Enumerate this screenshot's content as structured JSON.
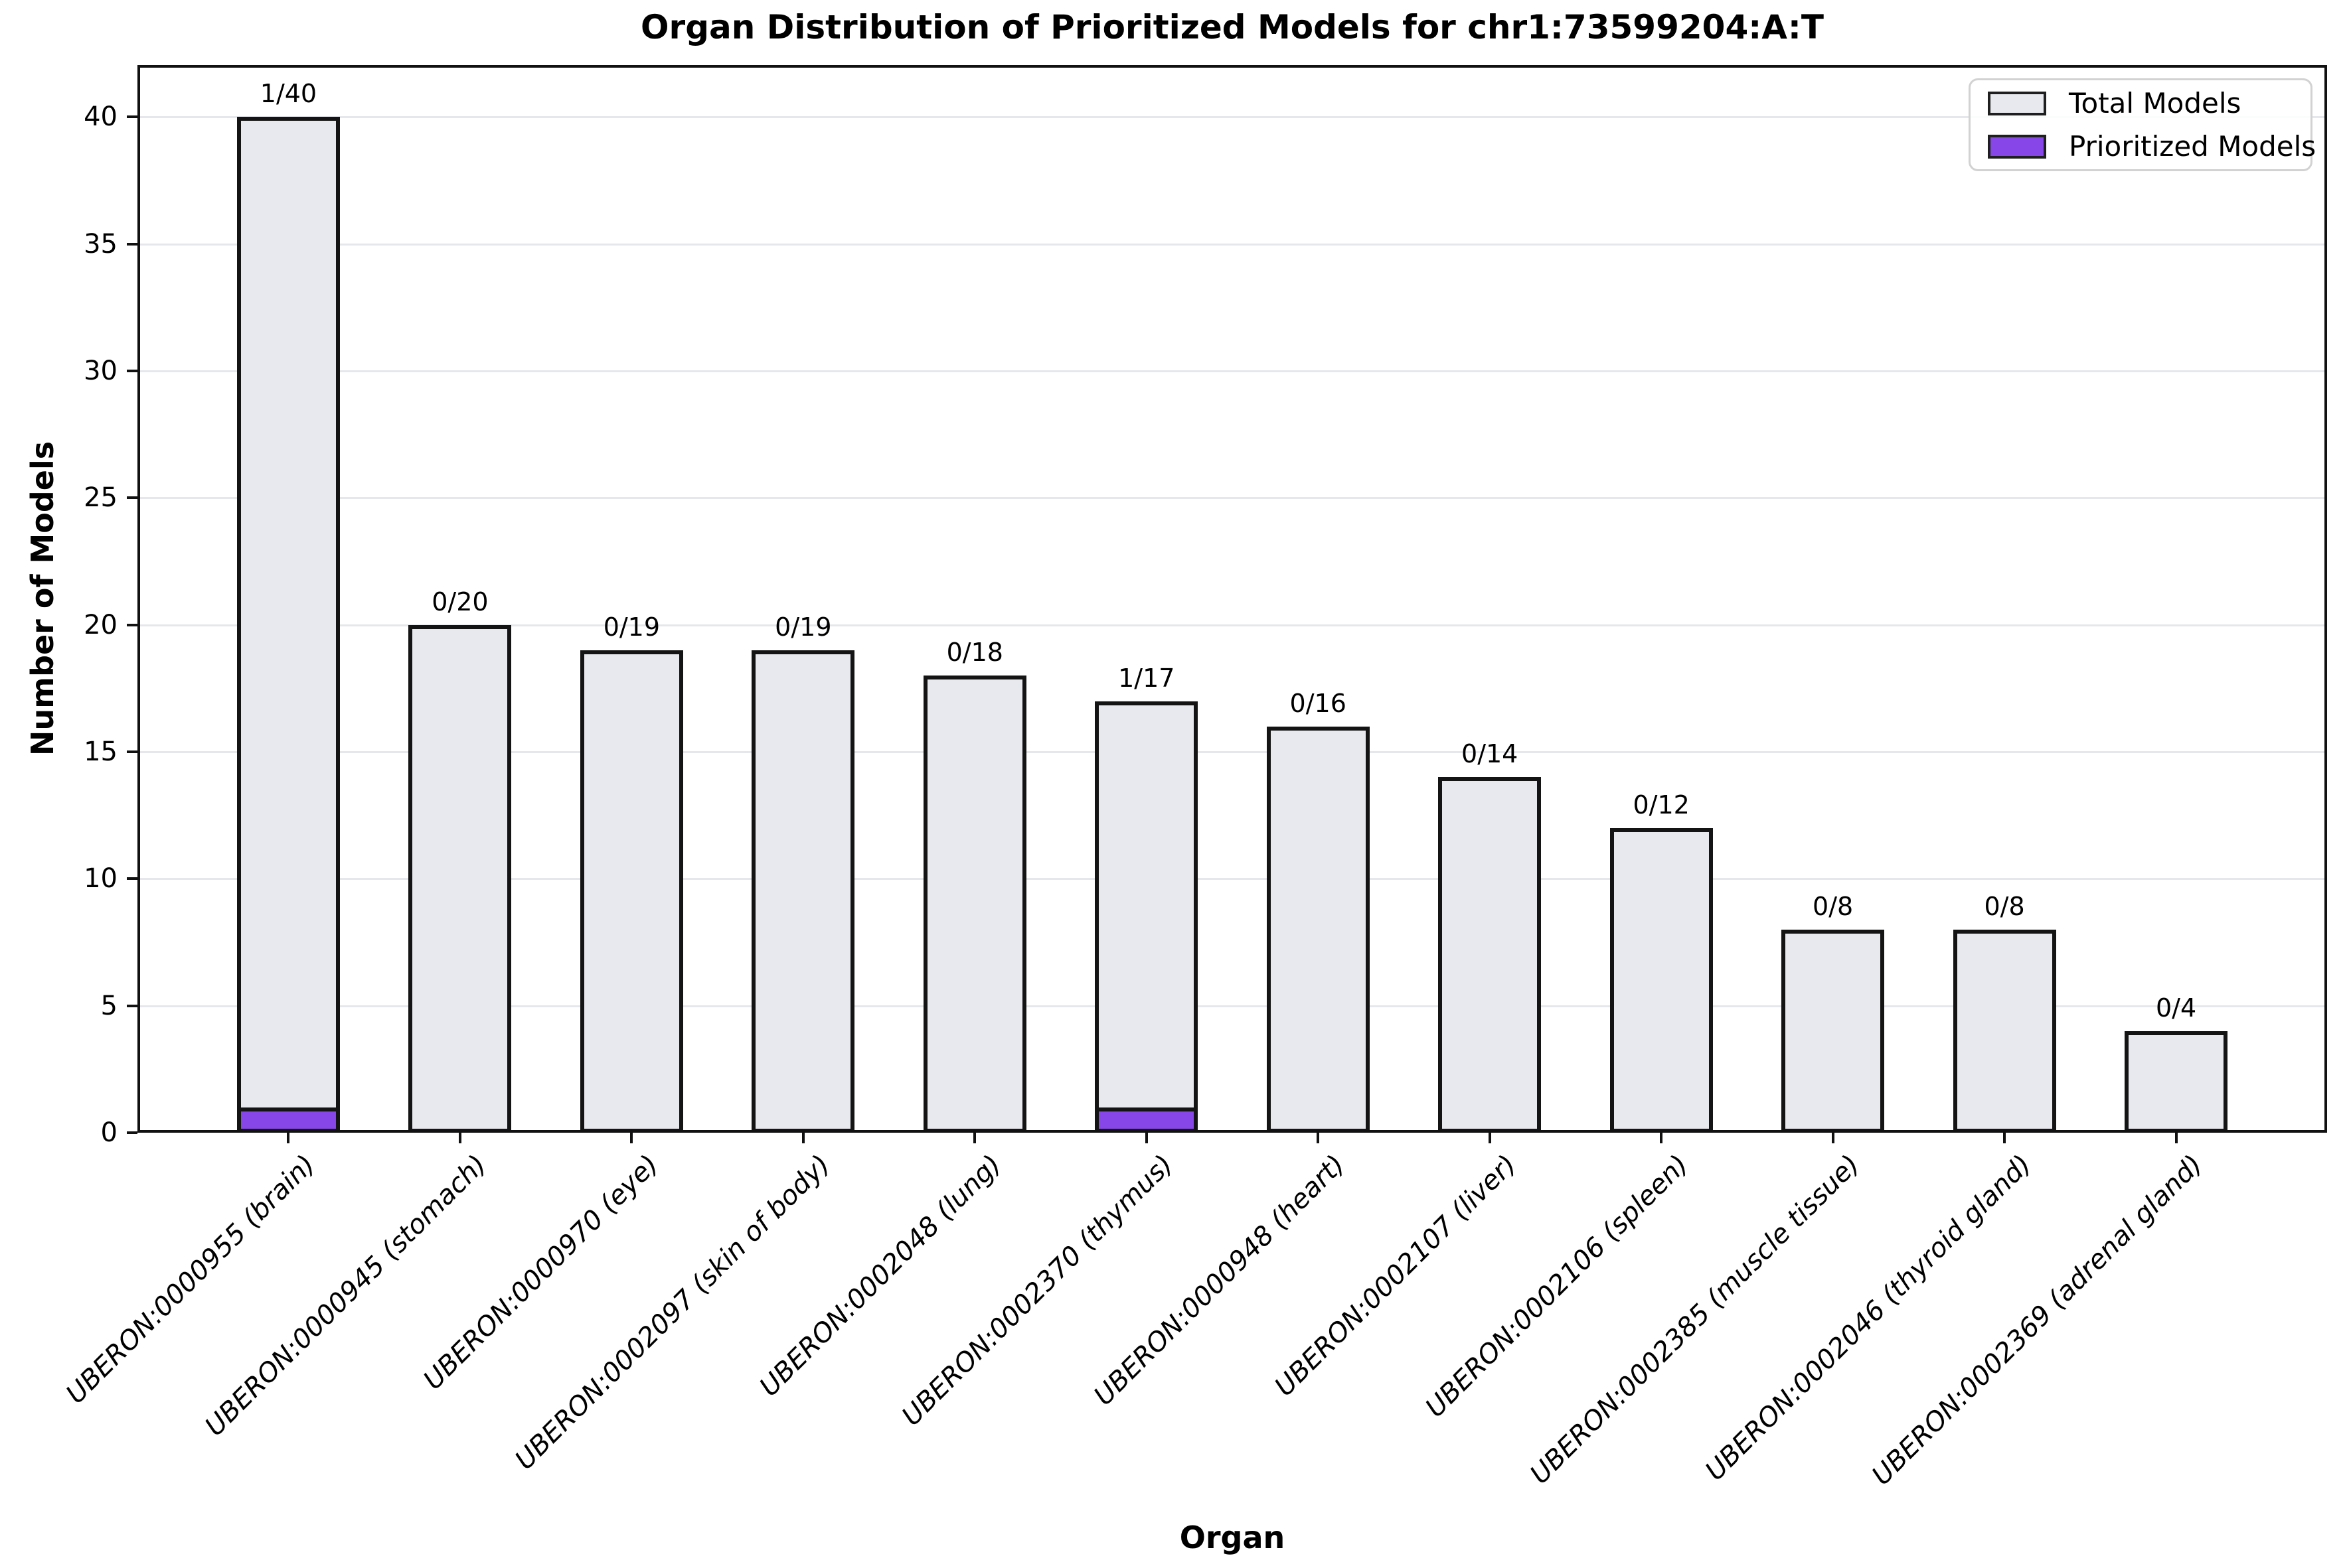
{
  "chart_data": {
    "type": "bar",
    "title": "Organ Distribution of Prioritized Models for chr1:73599204:A:T",
    "xlabel": "Organ",
    "ylabel": "Number of Models",
    "categories": [
      "UBERON:0000955 (brain)",
      "UBERON:0000945 (stomach)",
      "UBERON:0000970 (eye)",
      "UBERON:0002097 (skin of body)",
      "UBERON:0002048 (lung)",
      "UBERON:0002370 (thymus)",
      "UBERON:0000948 (heart)",
      "UBERON:0002107 (liver)",
      "UBERON:0002106 (spleen)",
      "UBERON:0002385 (muscle tissue)",
      "UBERON:0002046 (thyroid gland)",
      "UBERON:0002369 (adrenal gland)"
    ],
    "series": [
      {
        "name": "Total Models",
        "color": "#e8e9ee",
        "edge_color": "#141414",
        "values": [
          40,
          20,
          19,
          19,
          18,
          17,
          16,
          14,
          12,
          8,
          8,
          4
        ]
      },
      {
        "name": "Prioritized Models",
        "color": "#8747e8",
        "edge_color": "#141414",
        "values": [
          1,
          0,
          0,
          0,
          0,
          1,
          0,
          0,
          0,
          0,
          0,
          0
        ]
      }
    ],
    "bar_annotations": [
      "1/40",
      "0/20",
      "0/19",
      "0/19",
      "0/18",
      "1/17",
      "0/16",
      "0/14",
      "0/12",
      "0/8",
      "0/8",
      "0/4"
    ],
    "yticks": [
      0,
      5,
      10,
      15,
      20,
      25,
      30,
      35,
      40
    ],
    "ylim": [
      0,
      42
    ],
    "grid": "horizontal",
    "grid_color": "#e5e7eb",
    "legend_position": "upper right",
    "axis_color": "#111111",
    "background_color": "#ffffff"
  }
}
